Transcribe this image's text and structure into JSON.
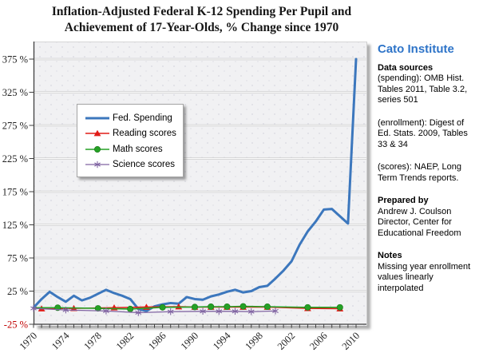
{
  "title": {
    "line1": "Inflation-Adjusted Federal K-12 Spending Per Pupil and",
    "line2": "Achievement of 17-Year-Olds, % Change since 1970"
  },
  "sidebar": {
    "blocks": [
      {
        "text": "Cato Institute"
      },
      {
        "text": "Data sources"
      },
      {
        "text": "(spending): OMB Hist. Tables 2011, Table 3.2, series 501"
      },
      {
        "text": "(enrollment): Digest of Ed. Stats. 2009, Tables 33 & 34"
      },
      {
        "text": "(scores): NAEP, Long Term Trends reports."
      },
      {
        "text": "Prepared by"
      },
      {
        "text": "Andrew J. Coulson"
      },
      {
        "text": "Director, Center for Educational Freedom"
      },
      {
        "text": "Notes"
      },
      {
        "text": "Missing year enrollment values linearly interpolated"
      }
    ]
  },
  "colors": {
    "cato_blue": "#2e74c8",
    "axis": "#404040",
    "tick_label": "#1f1f1f",
    "negative_tick_label": "#c00000",
    "plot_background": "#f1f1f3"
  },
  "chart_data": {
    "type": "line",
    "title": "Inflation-Adjusted Federal K-12 Spending Per Pupil and Achievement of 17-Year-Olds, % Change since 1970",
    "xlabel": "",
    "ylabel": "% change since 1970",
    "xlim": [
      1970,
      2011
    ],
    "ylim": [
      -25,
      400
    ],
    "grid": "horizontal gridlines every 50%",
    "legend_position": "upper-left inside plot",
    "y_tick_values": [
      -25,
      25,
      75,
      125,
      175,
      225,
      275,
      325,
      375
    ],
    "y_tick_labels": [
      "-25 %",
      "25 %",
      "75 %",
      "125 %",
      "175 %",
      "225 %",
      "275 %",
      "325 %",
      "375 %"
    ],
    "x_tick_years": [
      1970,
      1974,
      1978,
      1982,
      1986,
      1990,
      1994,
      1998,
      2002,
      2006,
      2010
    ],
    "x_tick_labels": [
      "1970",
      "1974",
      "1978",
      "1982",
      "1986",
      "1990",
      "1994",
      "1998",
      "2002",
      "2006",
      "2010"
    ],
    "series": [
      {
        "name": "Fed. Spending",
        "color": "#3c77bd",
        "marker": "none",
        "line_width": 3,
        "skip_first_marker": false,
        "x": [
          1970,
          1971,
          1972,
          1973,
          1974,
          1975,
          1976,
          1977,
          1978,
          1979,
          1980,
          1981,
          1982,
          1983,
          1984,
          1985,
          1986,
          1987,
          1988,
          1989,
          1990,
          1991,
          1992,
          1993,
          1994,
          1995,
          1996,
          1997,
          1998,
          1999,
          2000,
          2001,
          2002,
          2003,
          2004,
          2005,
          2006,
          2007,
          2008,
          2009,
          2010
        ],
        "y": [
          0,
          13,
          24,
          16,
          9,
          18,
          11,
          15,
          21,
          27,
          22,
          18,
          13,
          -2,
          -5,
          2,
          5,
          7,
          6,
          16,
          13,
          12,
          17,
          20,
          24,
          27,
          23,
          25,
          31,
          33,
          44,
          56,
          70,
          95,
          115,
          130,
          148,
          149,
          138,
          127,
          375
        ]
      },
      {
        "name": "Reading scores",
        "color": "#e11b17",
        "marker": "triangle",
        "line_width": 1.6,
        "skip_first_marker": true,
        "x": [
          1970,
          1971,
          1975,
          1980,
          1984,
          1988,
          1990,
          1992,
          1994,
          1996,
          1999,
          2004,
          2008
        ],
        "y": [
          0,
          -1.5,
          -1,
          0,
          1,
          1.5,
          1,
          1,
          1,
          1,
          1,
          -1,
          -1.5
        ]
      },
      {
        "name": "Math scores",
        "color": "#25a125",
        "marker": "circle",
        "line_width": 1.6,
        "skip_first_marker": true,
        "x": [
          1970,
          1973,
          1978,
          1982,
          1986,
          1990,
          1992,
          1994,
          1996,
          1999,
          2004,
          2008
        ],
        "y": [
          0,
          0,
          -1,
          -2,
          0.5,
          1,
          1.5,
          1.5,
          2,
          1.5,
          0.5,
          0.5
        ]
      },
      {
        "name": "Science scores",
        "color": "#8064a2",
        "marker": "asterisk",
        "line_width": 1.3,
        "skip_first_marker": false,
        "x": [
          1970,
          1974,
          1979,
          1983,
          1987,
          1991,
          1993,
          1995,
          1997,
          2000
        ],
        "y": [
          -1,
          -3.5,
          -5,
          -7.5,
          -6,
          -5.5,
          -5.5,
          -5.5,
          -6,
          -5
        ]
      }
    ]
  }
}
